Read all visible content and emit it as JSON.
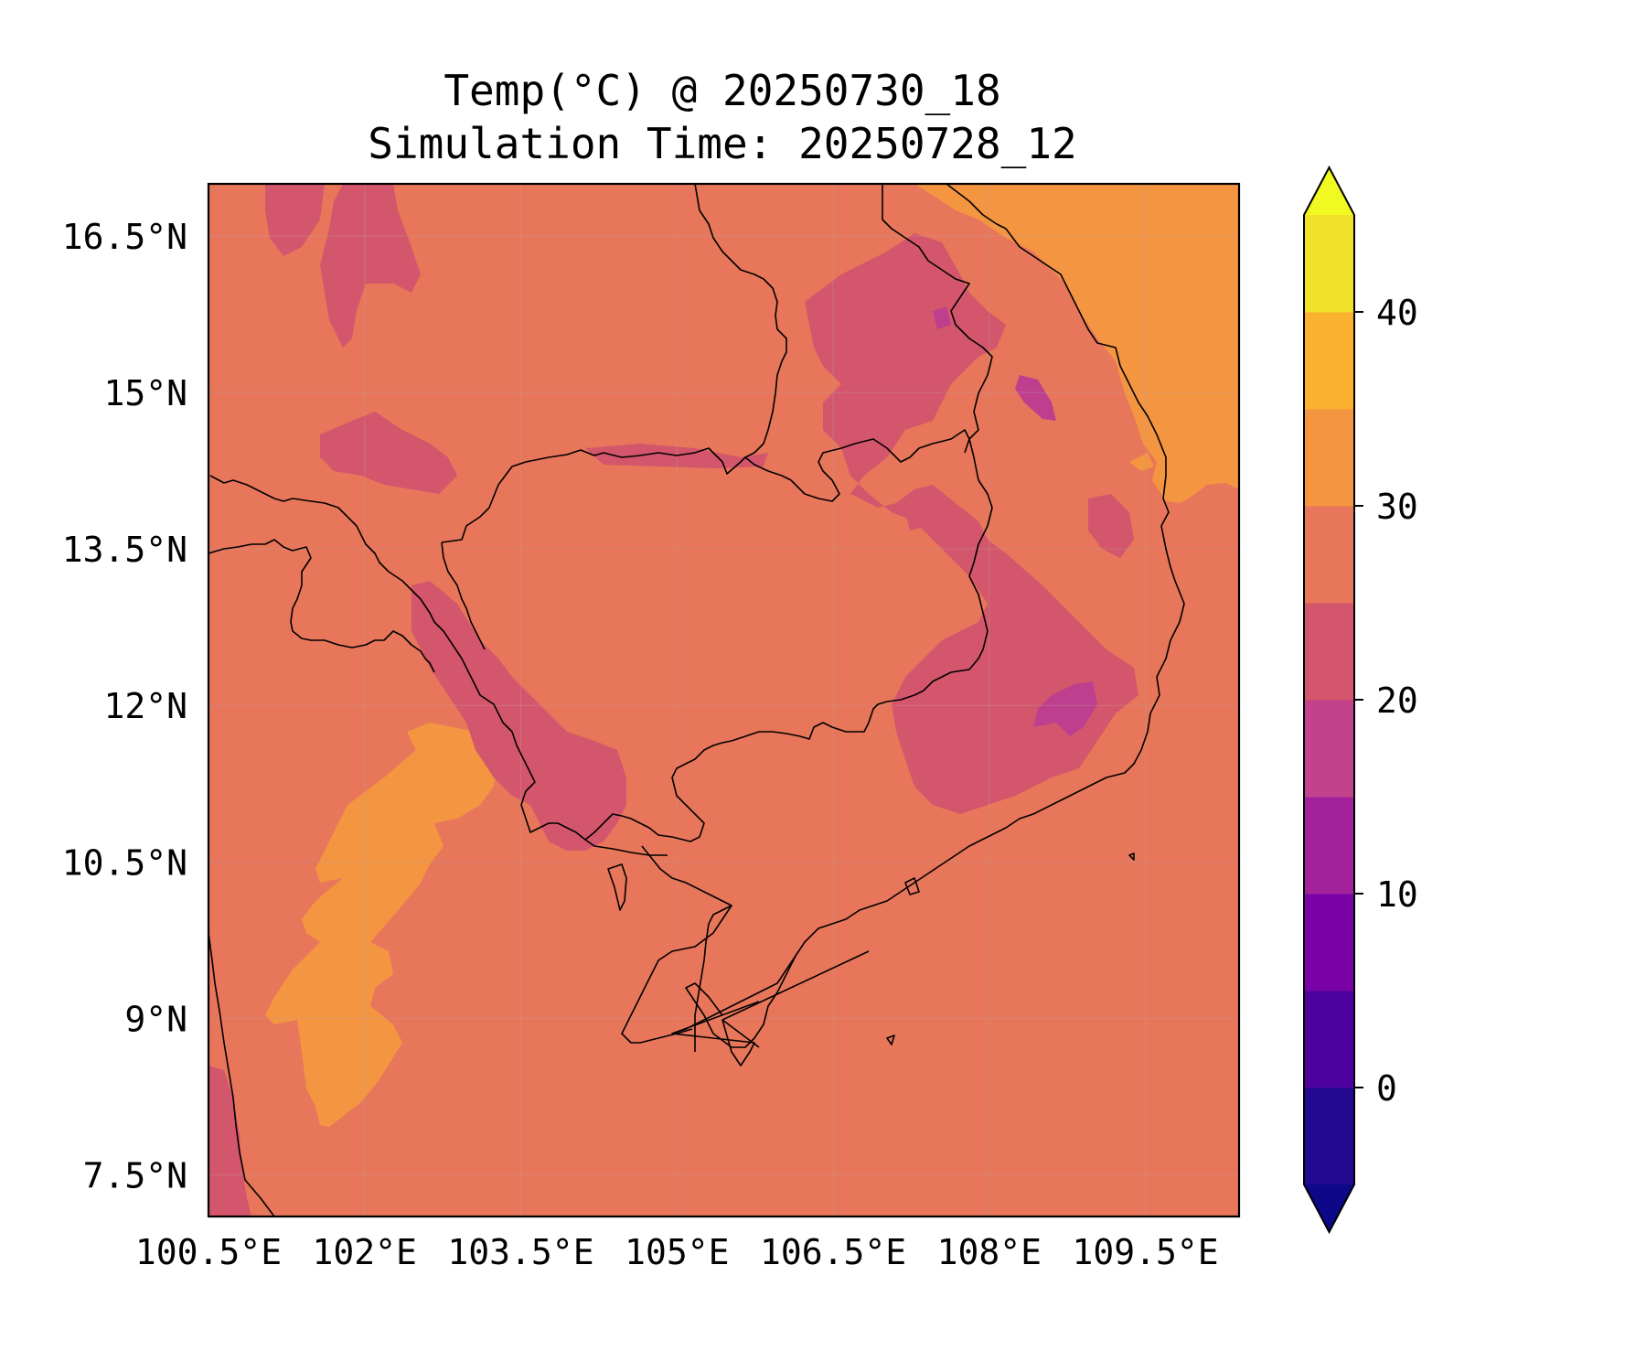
{
  "figure": {
    "title": "Temp(°C) @ 20250730_18",
    "subtitle": "Simulation Time: 20250728_12"
  },
  "map": {
    "variable": "Temp(°C)",
    "lat_ticks": [
      "16.5°N",
      "15°N",
      "13.5°N",
      "12°N",
      "10.5°N",
      "9°N",
      "7.5°N"
    ],
    "lon_ticks": [
      "100.5°E",
      "102°E",
      "103.5°E",
      "105°E",
      "106.5°E",
      "108°E",
      "109.5°E"
    ],
    "lat_values": [
      16.5,
      15,
      13.5,
      12,
      10.5,
      9,
      7.5
    ],
    "lon_values": [
      100.5,
      102,
      103.5,
      105,
      106.5,
      108,
      109.5
    ],
    "lat_range": [
      7.1,
      17.0
    ],
    "lon_range": [
      100.5,
      110.4
    ],
    "gridlines": true,
    "background_level_color": "#e8765a",
    "region_colors": {
      "warm_sea": "#f49542",
      "cooler_highlands": "#d4566c",
      "coolest_spots": "#be3f8e",
      "coastline": "#000000"
    }
  },
  "colorbar": {
    "tick_labels": [
      "0",
      "10",
      "20",
      "30",
      "40"
    ],
    "tick_values": [
      0,
      10,
      20,
      30,
      40
    ],
    "levels": [
      -5,
      0,
      5,
      10,
      15,
      20,
      25,
      30,
      35,
      40,
      45
    ],
    "colors": [
      "#230990",
      "#4d02a0",
      "#7a03a8",
      "#a3219a",
      "#c2428c",
      "#d4566c",
      "#e8765a",
      "#f49542",
      "#fbb130",
      "#f1e02a"
    ],
    "under_color": "#0d0887",
    "over_color": "#f0f921",
    "extend": "both"
  }
}
